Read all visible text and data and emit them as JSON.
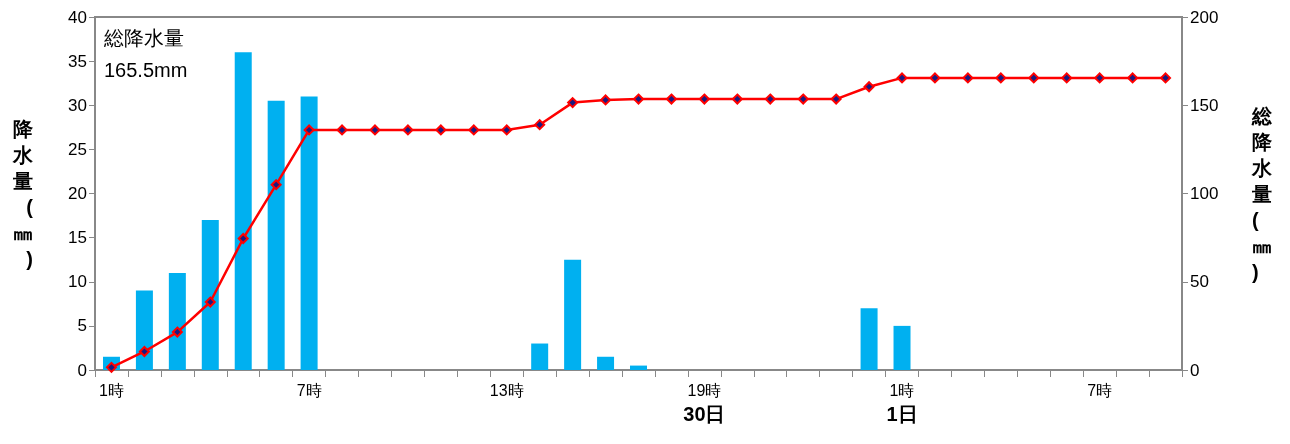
{
  "chart_data": {
    "type": "bar",
    "ylabel": "降水量(㎜)",
    "y2label": "総降水量(㎜)",
    "annotations": [
      "総降水量\n165.5mm"
    ],
    "categories": [
      "1時",
      null,
      null,
      null,
      null,
      null,
      "7時",
      null,
      null,
      null,
      null,
      null,
      "13時",
      null,
      null,
      null,
      null,
      null,
      "19時\n30日",
      null,
      null,
      null,
      null,
      null,
      "1時\n1日",
      null,
      null,
      null,
      null,
      null,
      "7時",
      null,
      null
    ],
    "series": [
      {
        "color": "#00b0f0",
        "values": [
          1.5,
          9,
          11,
          17,
          36,
          30.5,
          31,
          0,
          0,
          0,
          0,
          0,
          0,
          3,
          12.5,
          1.5,
          0.5,
          0,
          0,
          0,
          0,
          0,
          0,
          7,
          5,
          0,
          0,
          0,
          0,
          0,
          0,
          0,
          0
        ]
      },
      {
        "type": "line",
        "axis": "y2",
        "color": "#ff0000",
        "values": [
          1.5,
          10.5,
          21.5,
          38.5,
          74.5,
          105,
          136,
          136,
          136,
          136,
          136,
          136,
          136,
          139,
          151.5,
          153,
          153.5,
          153.5,
          153.5,
          153.5,
          153.5,
          153.5,
          153.5,
          160.5,
          165.5,
          165.5,
          165.5,
          165.5,
          165.5,
          165.5,
          165.5,
          165.5,
          165.5
        ]
      }
    ],
    "ylim": [
      0,
      40
    ],
    "yticks": [
      0,
      5,
      10,
      15,
      20,
      25,
      30,
      35,
      40
    ],
    "y2lim": [
      0,
      200
    ],
    "y2ticks": [
      0,
      50,
      100,
      150,
      200
    ],
    "grid": false,
    "marker": "diamond",
    "line_style": "solid"
  }
}
